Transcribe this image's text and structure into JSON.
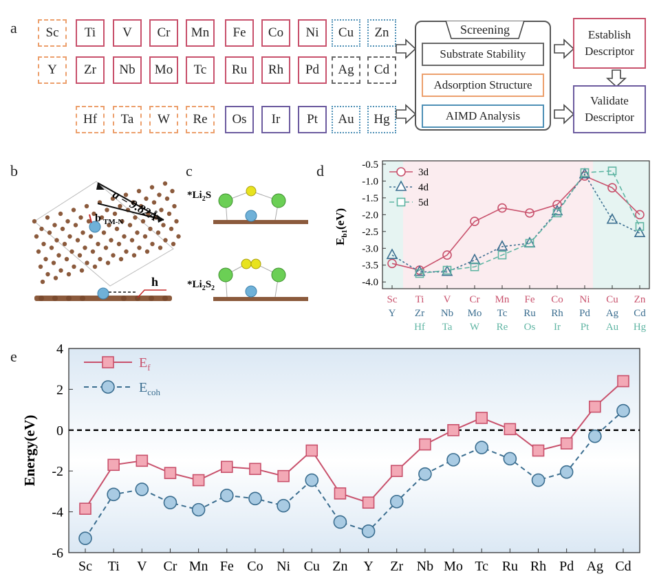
{
  "panel_labels": {
    "a": "a",
    "b": "b",
    "c": "c",
    "d": "d",
    "e": "e"
  },
  "colors": {
    "pink": "#c8506b",
    "blue": "#3a6d8f",
    "teal": "#5fb5a3",
    "orange": "#ec9f6c",
    "purple": "#6b5a9e",
    "cyan": "#4d8fb5",
    "gray": "#666666"
  },
  "periodic": {
    "rows": [
      [
        {
          "sym": "Sc",
          "style": "orange"
        },
        {
          "sym": "Ti",
          "style": "pink"
        },
        {
          "sym": "V",
          "style": "pink"
        },
        {
          "sym": "Cr",
          "style": "pink"
        },
        {
          "sym": "Mn",
          "style": "pink"
        },
        {
          "sym": "Fe",
          "style": "pink"
        },
        {
          "sym": "Co",
          "style": "pink"
        },
        {
          "sym": "Ni",
          "style": "pink"
        },
        {
          "sym": "Cu",
          "style": "cyan"
        },
        {
          "sym": "Zn",
          "style": "cyan"
        }
      ],
      [
        {
          "sym": "Y",
          "style": "orange"
        },
        {
          "sym": "Zr",
          "style": "pink"
        },
        {
          "sym": "Nb",
          "style": "pink"
        },
        {
          "sym": "Mo",
          "style": "pink"
        },
        {
          "sym": "Tc",
          "style": "pink"
        },
        {
          "sym": "Ru",
          "style": "pink"
        },
        {
          "sym": "Rh",
          "style": "pink"
        },
        {
          "sym": "Pd",
          "style": "pink"
        },
        {
          "sym": "Ag",
          "style": "gray"
        },
        {
          "sym": "Cd",
          "style": "gray"
        }
      ],
      [
        null,
        {
          "sym": "Hf",
          "style": "orange"
        },
        {
          "sym": "Ta",
          "style": "orange"
        },
        {
          "sym": "W",
          "style": "orange"
        },
        {
          "sym": "Re",
          "style": "orange"
        },
        {
          "sym": "Os",
          "style": "purple"
        },
        {
          "sym": "Ir",
          "style": "purple"
        },
        {
          "sym": "Pt",
          "style": "purple"
        },
        {
          "sym": "Au",
          "style": "cyan"
        },
        {
          "sym": "Hg",
          "style": "cyan"
        }
      ]
    ]
  },
  "flow": {
    "screening": "Screening",
    "substrate": "Substrate Stability",
    "adsorption": "Adsorption Structure",
    "aimd": "AIMD Analysis",
    "establish": "Establish Descriptor",
    "validate": "Validate Descriptor"
  },
  "structures": {
    "lattice": "a = 9.82Å",
    "bond": "b",
    "bond_sub": "TM-N",
    "height": "h",
    "li2s": "*Li",
    "li2s_sub1": "2",
    "li2s_tail": "S",
    "li2s2": "*Li",
    "li2s2_sub1": "2",
    "li2s2_tail": "S",
    "li2s2_sub2": "2"
  },
  "chart_data": [
    {
      "type": "line",
      "ylabel": "E",
      "ylabel_sub": "b1",
      "ylabel_unit": "(eV)",
      "ylim": [
        -4.2,
        -0.4
      ],
      "yticks": [
        "-0.5",
        "-1.0",
        "-1.5",
        "-2.0",
        "-2.5",
        "-3.0",
        "-3.5",
        "-4.0"
      ],
      "categories_3d": [
        "Sc",
        "Ti",
        "V",
        "Cr",
        "Mn",
        "Fe",
        "Co",
        "Ni",
        "Cu",
        "Zn"
      ],
      "categories_4d": [
        "Y",
        "Zr",
        "Nb",
        "Mo",
        "Tc",
        "Ru",
        "Rh",
        "Pd",
        "Ag",
        "Cd"
      ],
      "categories_5d": [
        "Hf",
        "Ta",
        "W",
        "Re",
        "Os",
        "Ir",
        "Pt",
        "Au",
        "Hg"
      ],
      "series": [
        {
          "name": "3d",
          "values": [
            -3.45,
            -3.65,
            -3.2,
            -2.2,
            -1.8,
            -1.95,
            -1.7,
            -0.85,
            -1.2,
            -2.0
          ]
        },
        {
          "name": "4d",
          "values": [
            -3.2,
            -3.7,
            -3.7,
            -3.35,
            -2.95,
            -2.85,
            -1.9,
            -0.8,
            -2.15,
            -2.55
          ]
        },
        {
          "name": "5d",
          "values": [
            null,
            -3.75,
            -3.65,
            -3.55,
            -3.2,
            -2.85,
            -1.95,
            -0.75,
            -0.7,
            -2.35
          ]
        }
      ]
    },
    {
      "type": "line",
      "ylabel": "Energy(eV)",
      "ylim": [
        -6,
        4
      ],
      "yticks": [
        "4",
        "2",
        "0",
        "-2",
        "-4",
        "-6"
      ],
      "categories": [
        "Sc",
        "Ti",
        "V",
        "Cr",
        "Mn",
        "Fe",
        "Co",
        "Ni",
        "Cu",
        "Zn",
        "Y",
        "Zr",
        "Nb",
        "Mo",
        "Tc",
        "Ru",
        "Rh",
        "Pd",
        "Ag",
        "Cd"
      ],
      "series": [
        {
          "name": "E",
          "sub": "f",
          "values": [
            -3.85,
            -1.7,
            -1.5,
            -2.1,
            -2.45,
            -1.8,
            -1.9,
            -2.25,
            -1.0,
            -3.1,
            -3.55,
            -2.0,
            -0.7,
            0.0,
            0.6,
            0.05,
            -1.0,
            -0.65,
            1.15,
            2.4
          ]
        },
        {
          "name": "E",
          "sub": "coh",
          "values": [
            -5.3,
            -3.15,
            -2.9,
            -3.55,
            -3.9,
            -3.2,
            -3.35,
            -3.7,
            -2.45,
            -4.5,
            -4.95,
            -3.5,
            -2.15,
            -1.45,
            -0.85,
            -1.4,
            -2.45,
            -2.05,
            -0.3,
            0.95
          ]
        }
      ]
    }
  ]
}
